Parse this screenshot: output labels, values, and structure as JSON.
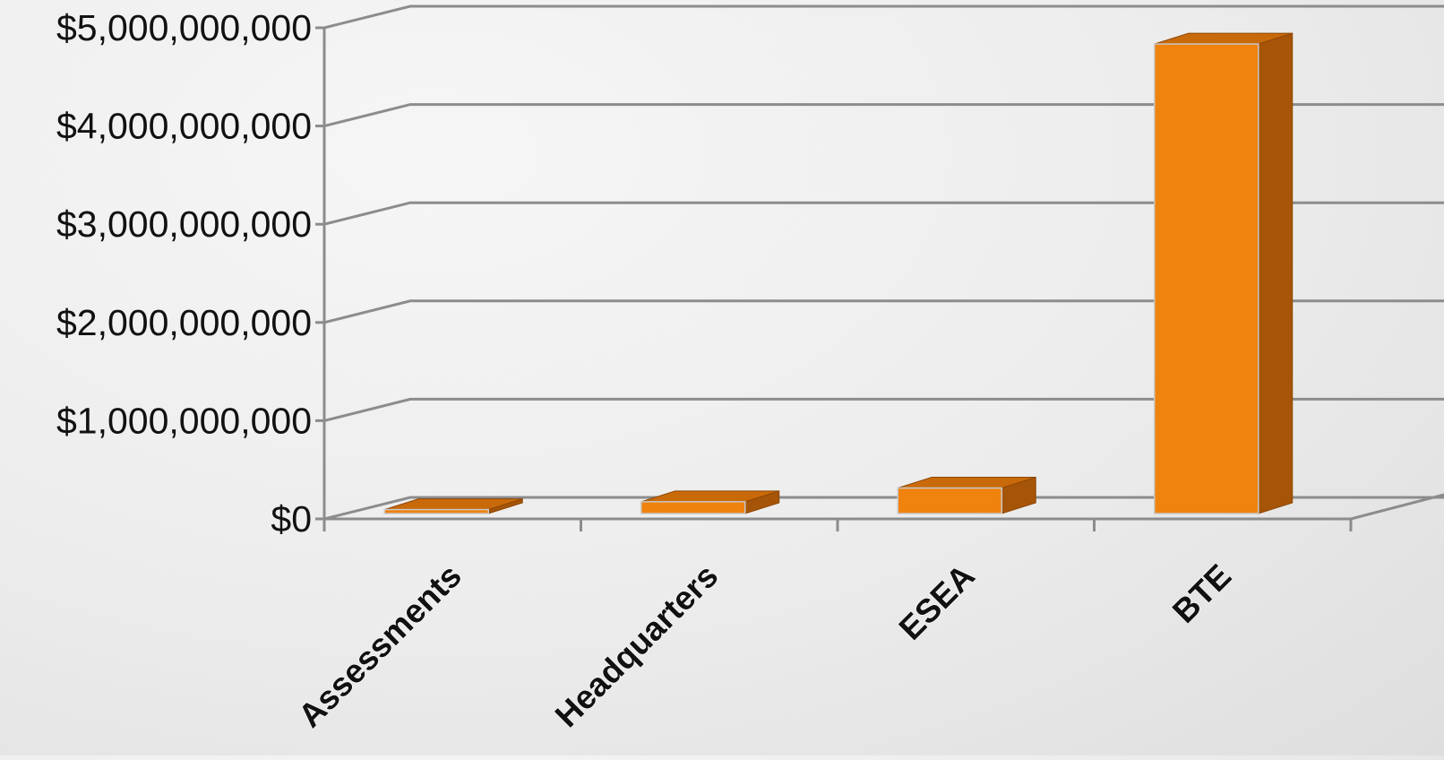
{
  "chart_data": {
    "type": "bar",
    "style": "3d-column",
    "categories": [
      "Assessments",
      "Headquarters",
      "ESEA",
      "BTE"
    ],
    "values": [
      40000000,
      120000000,
      260000000,
      4780000000
    ],
    "ylim": [
      0,
      5000000000
    ],
    "yticks": [
      0,
      1000000000,
      2000000000,
      3000000000,
      4000000000,
      5000000000
    ],
    "ytick_labels": [
      "$0",
      "$1,000,000,000",
      "$2,000,000,000",
      "$3,000,000,000",
      "$4,000,000,000",
      "$5,000,000,000"
    ],
    "grid": true,
    "legend": "none",
    "colors": {
      "bar_front": "#f0820e",
      "bar_top": "#c96a0a",
      "bar_side": "#a65407",
      "gridline": "#8c8c8c",
      "background": "#ececec"
    }
  }
}
